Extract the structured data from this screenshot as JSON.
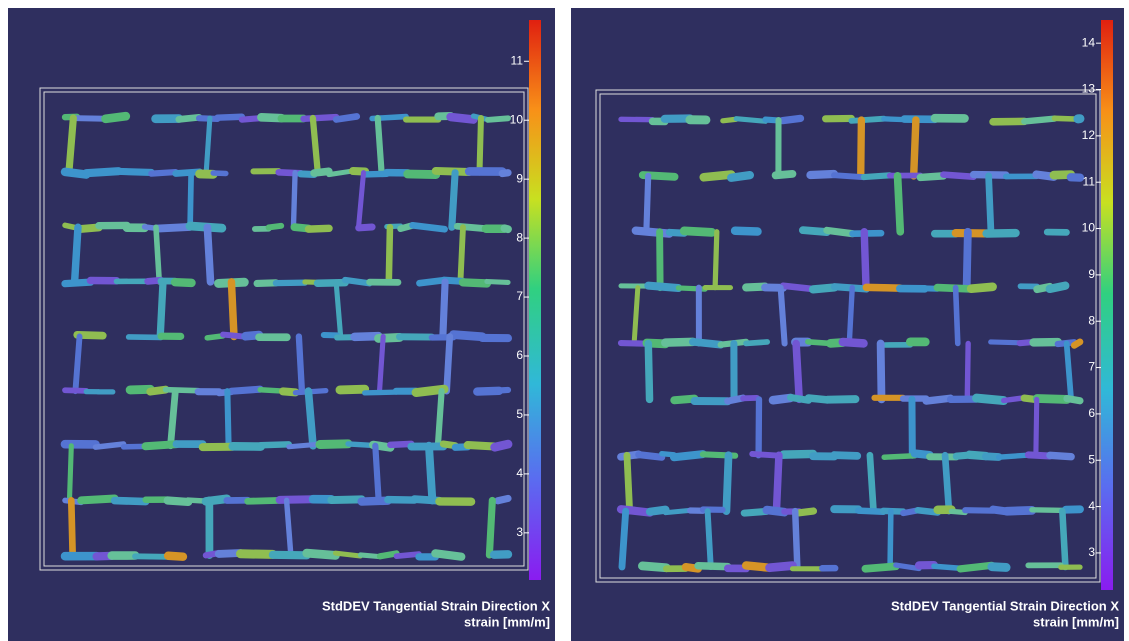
{
  "panels": [
    {
      "title": "StdDEV Tangential Strain Direction X",
      "unit": "strain [mm/m]",
      "colorbar": {
        "ylim": [
          2.2,
          11.7
        ],
        "ticks": [
          3,
          4,
          5,
          6,
          7,
          8,
          9,
          10,
          11
        ]
      }
    },
    {
      "title": "StdDEV Tangential Strain Direction X",
      "unit": "strain [mm/m]",
      "colorbar": {
        "ylim": [
          2.2,
          14.5
        ],
        "ticks": [
          3,
          4,
          5,
          6,
          7,
          8,
          9,
          10,
          11,
          12,
          13,
          14
        ]
      }
    }
  ]
}
